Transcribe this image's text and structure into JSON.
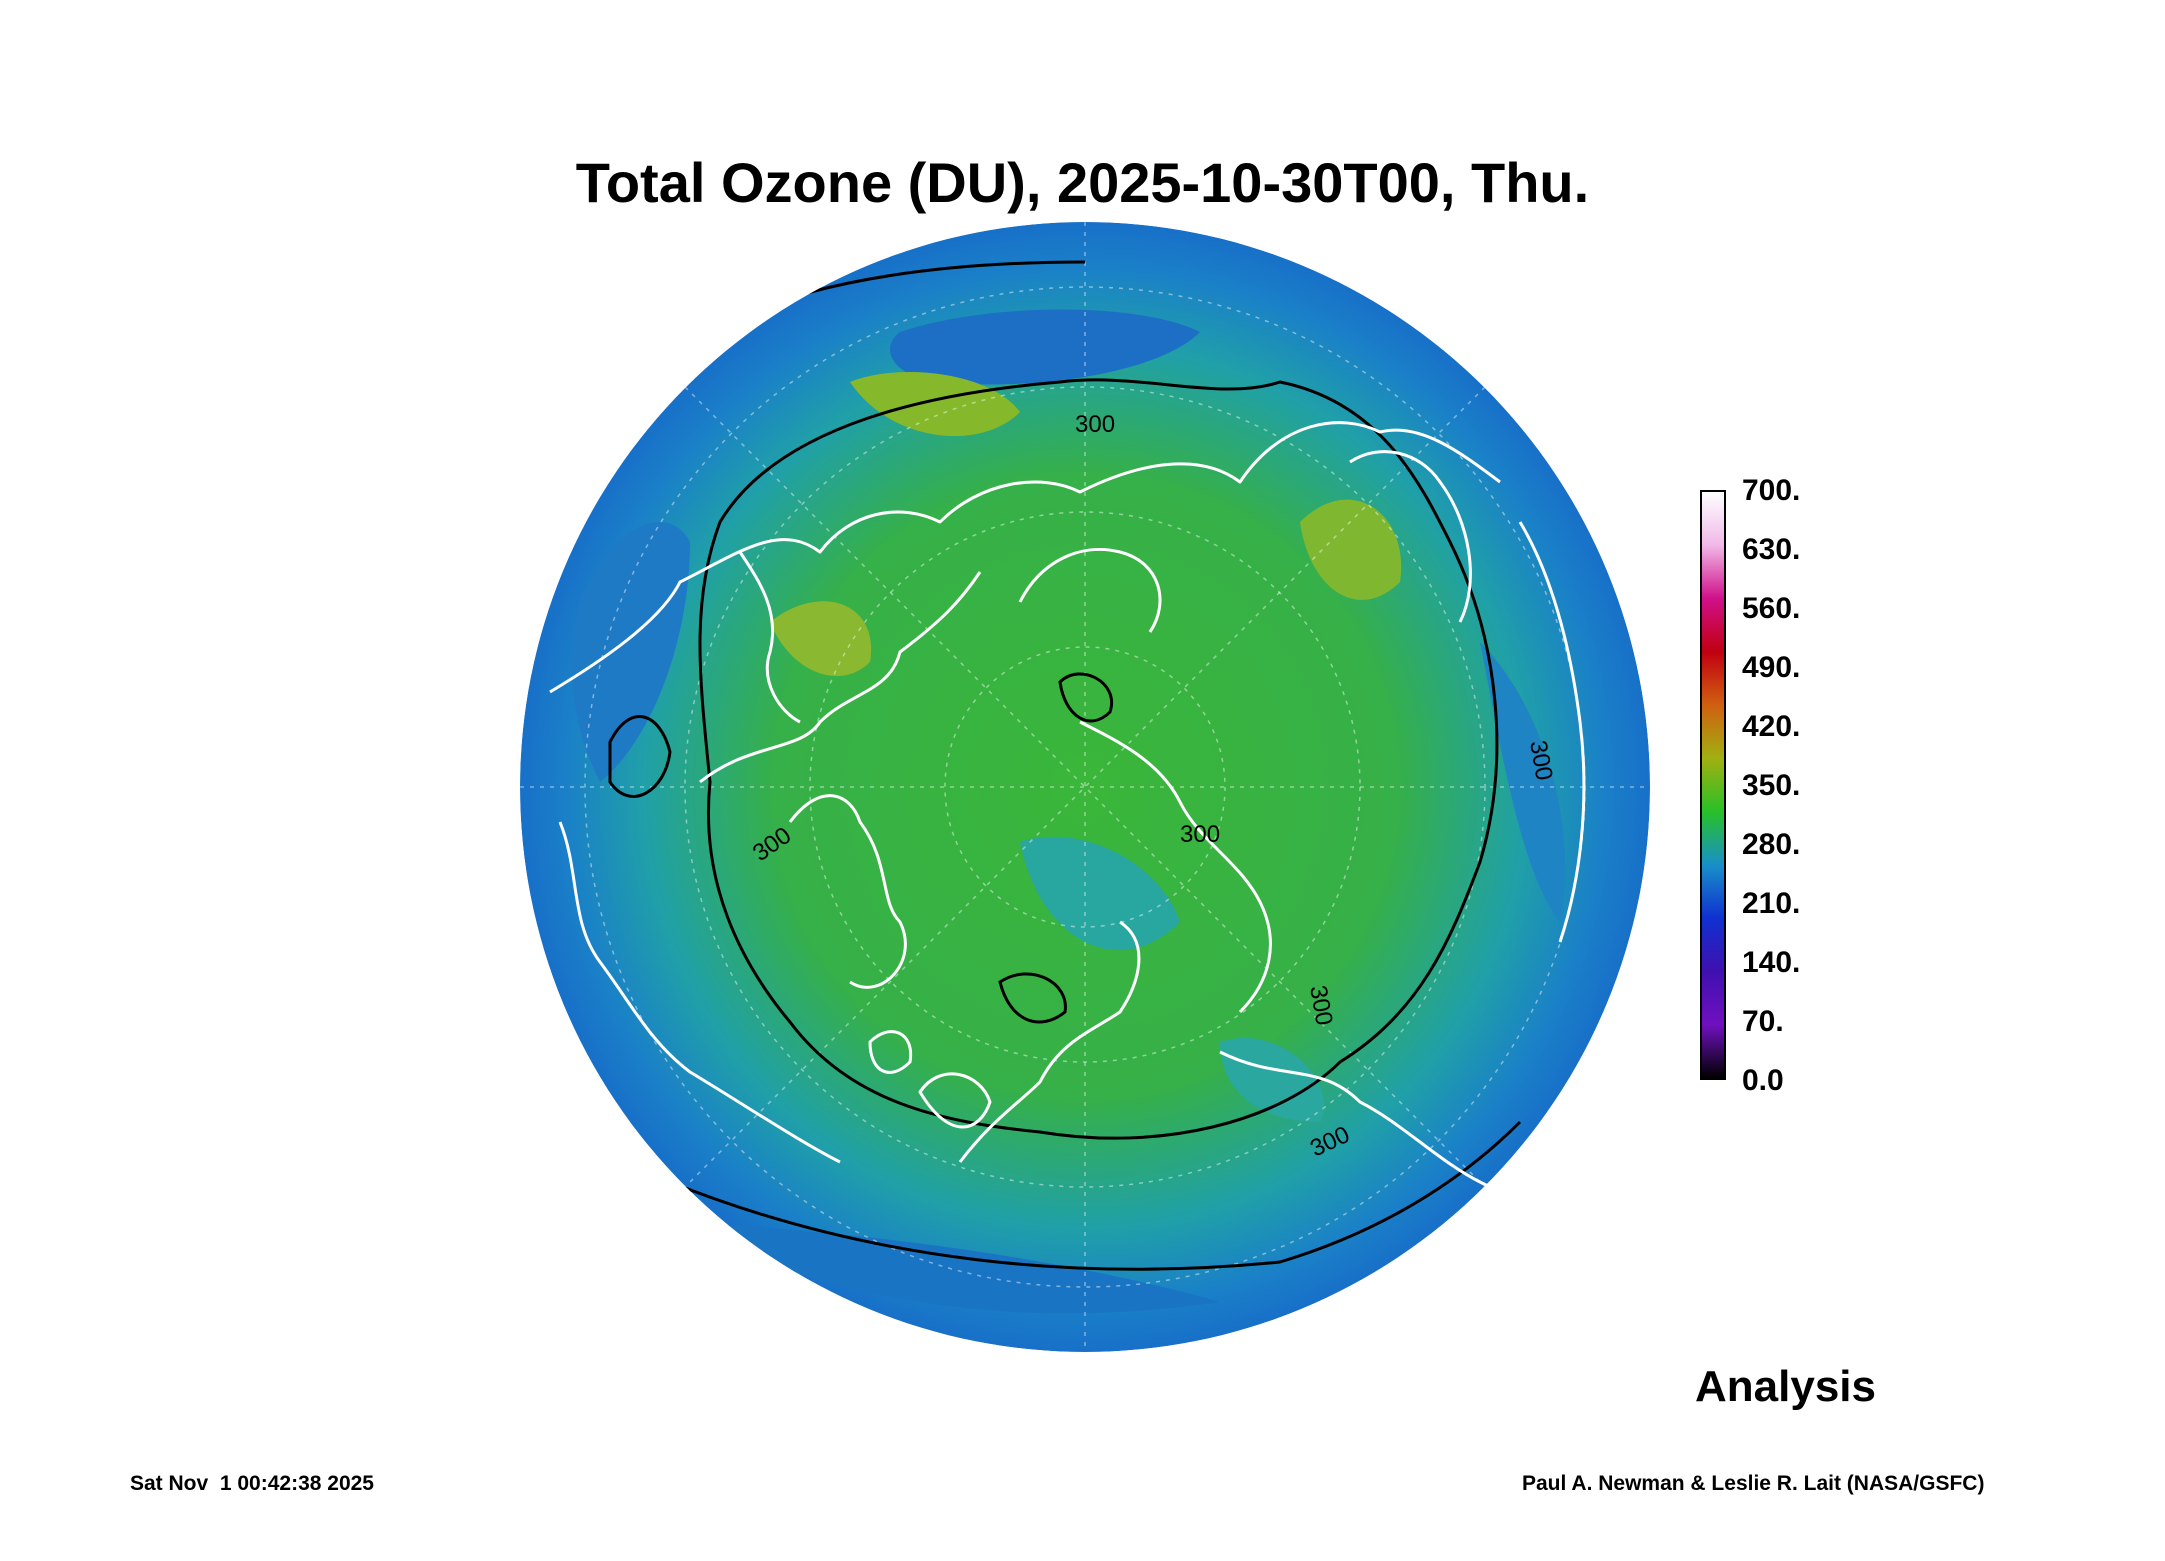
{
  "title": "Total Ozone (DU), 2025-10-30T00, Thu.",
  "colorbar": {
    "ticks": [
      "700.",
      "630.",
      "560.",
      "490.",
      "420.",
      "350.",
      "280.",
      "210.",
      "140.",
      "70.",
      "0.0"
    ],
    "stops": [
      "#ffffff",
      "#f0b8e8",
      "#d0108a",
      "#c00010",
      "#d06010",
      "#a0b010",
      "#28c028",
      "#1890c8",
      "#1030d0",
      "#4010b0",
      "#7010c0",
      "#000000"
    ]
  },
  "contour_labels": [
    "300",
    "300",
    "300",
    "300",
    "300",
    "300"
  ],
  "analysis_label": "Analysis",
  "footer": {
    "timestamp": "Sat Nov  1 00:42:38 2025",
    "credit": "Paul A. Newman & Leslie R. Lait (NASA/GSFC)"
  },
  "map": {
    "projection": "north polar orthographic",
    "colors": {
      "ocean_blue": "#1f7fc6",
      "ozone_green": "#3bb53b",
      "high_ozone": "#9fb52a",
      "coastline": "#ffffff",
      "contour": "#000000"
    }
  }
}
